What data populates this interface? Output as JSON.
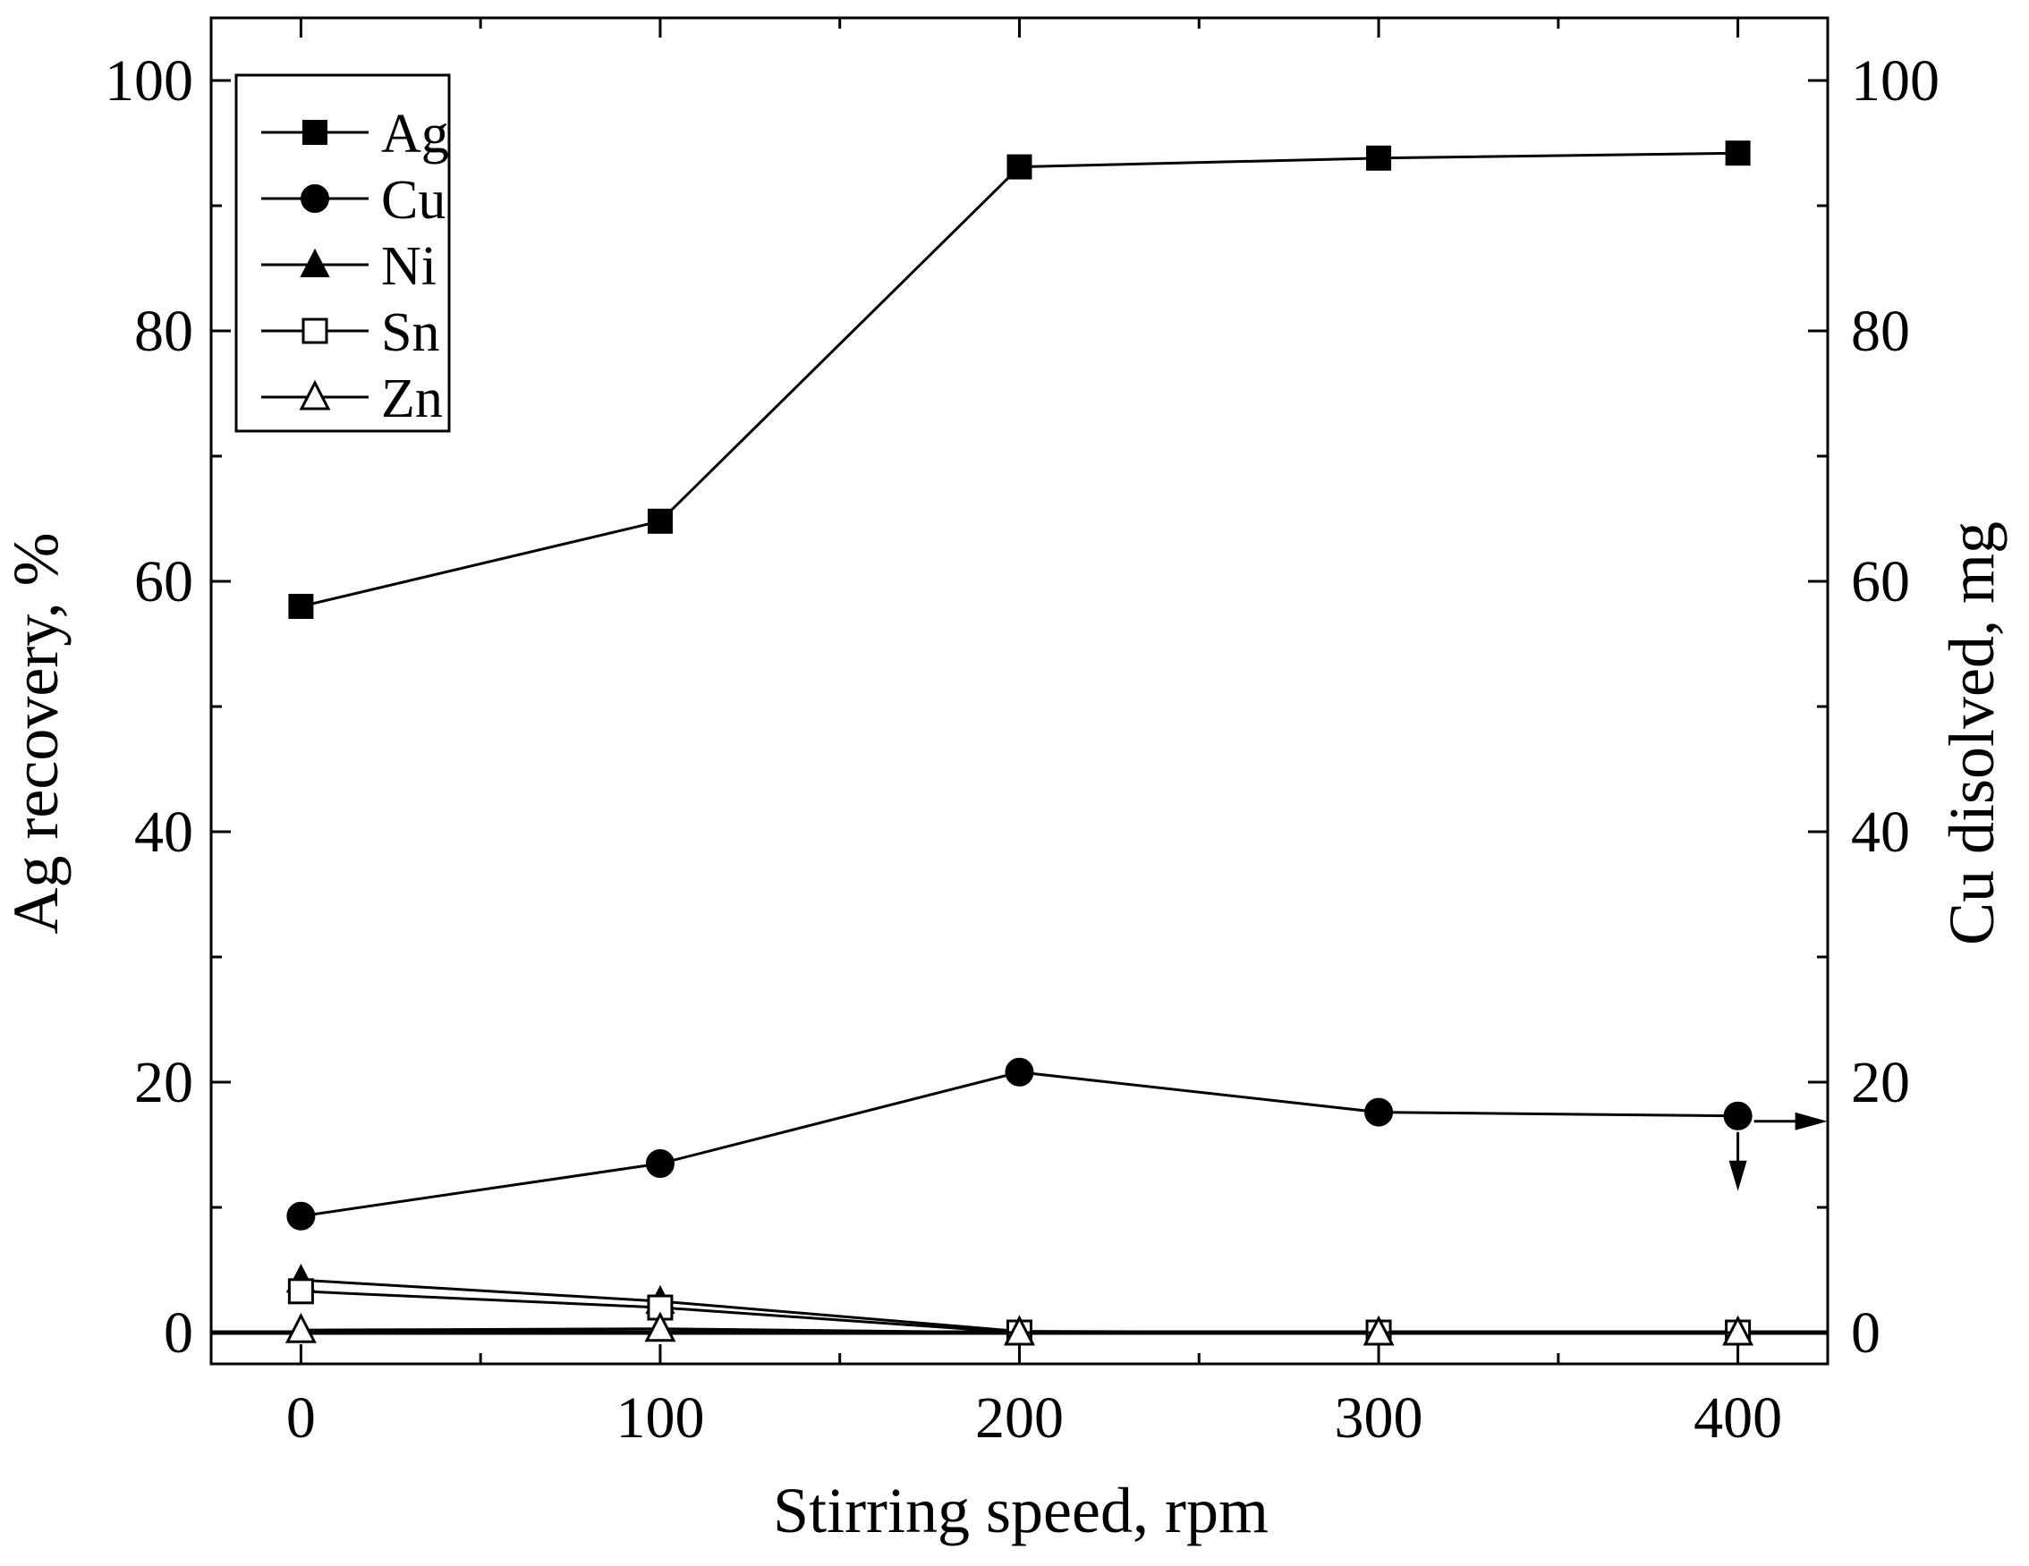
{
  "chart_data": {
    "type": "line",
    "x": [
      0,
      100,
      200,
      300,
      400
    ],
    "xlim": [
      -25,
      425
    ],
    "ylim": [
      -2.5,
      105
    ],
    "y2lim": [
      -2.5,
      105
    ],
    "xticks": [
      0,
      100,
      200,
      300,
      400
    ],
    "xticklabels": [
      "0",
      "100",
      "200",
      "300",
      "400"
    ],
    "yticks": [
      0,
      20,
      40,
      60,
      80,
      100
    ],
    "yticklabels": [
      "0",
      "20",
      "40",
      "60",
      "80",
      "100"
    ],
    "y2ticks": [
      0,
      20,
      40,
      60,
      80,
      100
    ],
    "y2ticklabels": [
      "0",
      "20",
      "40",
      "60",
      "80",
      "100"
    ],
    "xlabel": "Stirring speed, rpm",
    "ylabel": "Ag recovery, %",
    "y2label": "Cu disolved, mg",
    "legend_position": "top-left",
    "series": [
      {
        "name": "Ag",
        "marker": "square-filled",
        "axis": "left",
        "values": [
          58.0,
          64.8,
          93.1,
          93.8,
          94.2
        ]
      },
      {
        "name": "Cu",
        "marker": "circle-filled",
        "axis": "right",
        "values": [
          9.3,
          13.5,
          20.8,
          17.6,
          17.3
        ]
      },
      {
        "name": "Ni",
        "marker": "triangle-filled",
        "axis": "right",
        "values": [
          4.2,
          2.5,
          0.1,
          0.0,
          0.0
        ]
      },
      {
        "name": "Sn",
        "marker": "square-open",
        "axis": "right",
        "values": [
          3.3,
          2.0,
          0.0,
          0.0,
          0.0
        ]
      },
      {
        "name": "Zn",
        "marker": "triangle-open",
        "axis": "right",
        "values": [
          0.2,
          0.3,
          0.0,
          0.0,
          0.0
        ]
      }
    ],
    "annotations": [
      {
        "type": "arrow",
        "target": "Cu",
        "direction": "right",
        "meaning": "Cu series read on right axis"
      },
      {
        "type": "arrow",
        "target": "Cu",
        "direction": "down"
      }
    ]
  }
}
